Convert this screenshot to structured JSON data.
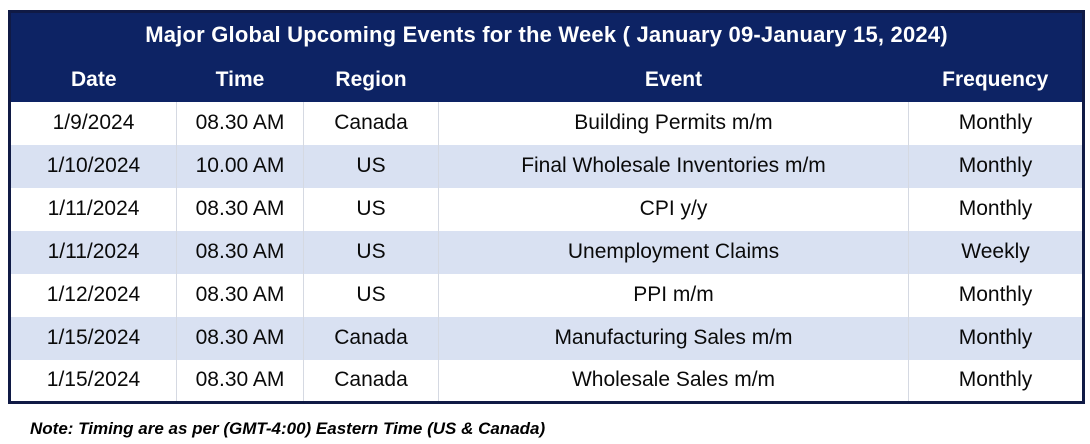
{
  "table": {
    "title": "Major Global Upcoming Events for the Week ( January 09-January 15, 2024)",
    "columns": [
      "Date",
      "Time",
      "Region",
      "Event",
      "Frequency"
    ],
    "rows": [
      {
        "date": "1/9/2024",
        "time": "08.30 AM",
        "region": "Canada",
        "event": "Building Permits m/m",
        "frequency": "Monthly"
      },
      {
        "date": "1/10/2024",
        "time": "10.00 AM",
        "region": "US",
        "event": "Final Wholesale Inventories m/m",
        "frequency": "Monthly"
      },
      {
        "date": "1/11/2024",
        "time": "08.30 AM",
        "region": "US",
        "event": "CPI y/y",
        "frequency": "Monthly"
      },
      {
        "date": "1/11/2024",
        "time": "08.30 AM",
        "region": "US",
        "event": "Unemployment Claims",
        "frequency": "Weekly"
      },
      {
        "date": "1/12/2024",
        "time": "08.30 AM",
        "region": "US",
        "event": "PPI m/m",
        "frequency": "Monthly"
      },
      {
        "date": "1/15/2024",
        "time": "08.30 AM",
        "region": "Canada",
        "event": "Manufacturing Sales m/m",
        "frequency": "Monthly"
      },
      {
        "date": "1/15/2024",
        "time": "08.30 AM",
        "region": "Canada",
        "event": "Wholesale Sales m/m",
        "frequency": "Monthly"
      }
    ]
  },
  "note": "Note: Timing are as per (GMT-4:00) Eastern Time  (US & Canada)",
  "colors": {
    "header_bg": "#0d2364",
    "header_text": "#ffffff",
    "alt_row_bg": "#d9e1f2",
    "row_bg": "#ffffff",
    "body_text": "#0a0a0a",
    "outer_border": "#101a45",
    "cell_divider": "#d5d9e2"
  }
}
